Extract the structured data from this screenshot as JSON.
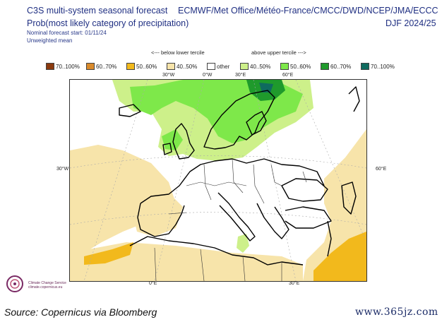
{
  "header": {
    "title": "C3S multi-system seasonal forecast",
    "subtitle": "Prob(most likely category of precipitation)",
    "nominal_start": "Nominal forecast start: 01/11/24",
    "weighting": "Unweighted mean",
    "models": "ECMWF/Met Office/Météo-France/CMCC/DWD/NCEP/JMA/ECCC",
    "season": "DJF 2024/25"
  },
  "legend": {
    "below_label": "<--- below lower tercile",
    "above_label": "above upper tercile --->",
    "items": [
      {
        "label": "70..100%",
        "color": "#8b3a0e"
      },
      {
        "label": "60..70%",
        "color": "#d98a2b"
      },
      {
        "label": "50..60%",
        "color": "#f2b91c"
      },
      {
        "label": "40..50%",
        "color": "#f7e4aa"
      },
      {
        "label": "other",
        "color": "#ffffff"
      },
      {
        "label": "40..50%",
        "color": "#cdf08a"
      },
      {
        "label": "50..60%",
        "color": "#7ee84a"
      },
      {
        "label": "60..70%",
        "color": "#1f9a2c"
      },
      {
        "label": "70..100%",
        "color": "#0f6b5f"
      }
    ]
  },
  "axes": {
    "top_ticks": [
      "30°W",
      "0°W",
      "30°E",
      "60°E"
    ],
    "bottom_ticks": [
      "0°E",
      "30°E"
    ],
    "left_tick": "30°W",
    "right_tick": "60°E"
  },
  "footer": {
    "logo_text": "Climate Change Service",
    "logo_url": "climate.copernicus.eu",
    "source": "Source: Copernicus via Bloomberg",
    "watermark": "www.365jz.com"
  }
}
